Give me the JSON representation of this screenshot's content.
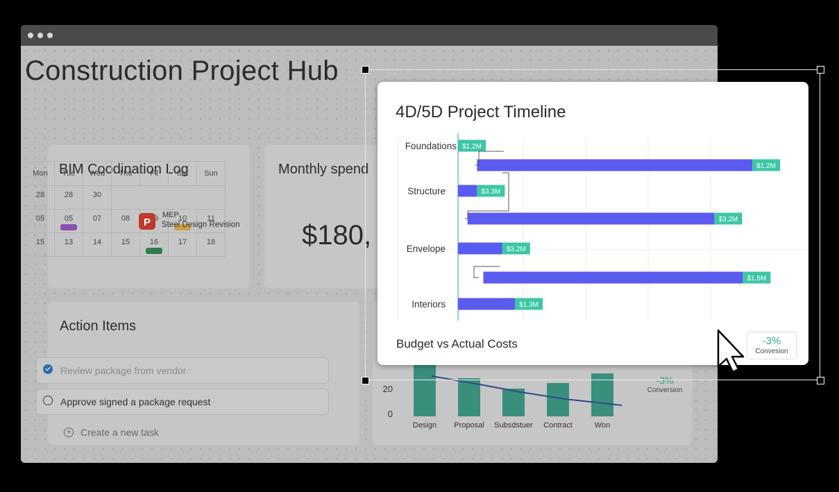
{
  "window": {
    "title": "Construction Project Hub"
  },
  "bim_log": {
    "title": "BIM Coodination Log",
    "weekdays": [
      "Mon",
      "Tue",
      "Wed",
      "Thu",
      "Fil",
      "Sat",
      "Sun"
    ],
    "rows": [
      [
        "28",
        "28",
        "30",
        "",
        "",
        "",
        ""
      ],
      [
        "05",
        "05",
        "07",
        "08",
        "09",
        "10",
        "11"
      ],
      [
        "15",
        "13",
        "14",
        "15",
        "16",
        "17",
        "18"
      ]
    ],
    "event": {
      "category": "MEP",
      "description": "Steel Design Revision",
      "icon": "pin-app-icon",
      "icon_color": "#c0392b"
    },
    "chips": [
      {
        "row": 1,
        "col": 1,
        "color": "#8a4fb0"
      },
      {
        "row": 1,
        "col": 5,
        "color": "#c9a04a"
      },
      {
        "row": 2,
        "col": 4,
        "color": "#2e7d4f"
      }
    ]
  },
  "monthly_spend": {
    "title": "Monthly spend",
    "value": "$180,"
  },
  "action_items": {
    "title": "Action Items",
    "tasks": [
      {
        "label": "Review package from vendor",
        "done": true
      },
      {
        "label": "Approve signed a package request",
        "done": false
      }
    ],
    "create_label": "Create a new task"
  },
  "funnel": {
    "y_ticks": [
      "20",
      "0"
    ],
    "categories": [
      "Design",
      "Proposal",
      "Subsdstuer",
      "Contract",
      "Won"
    ],
    "stat_value": "-3%",
    "stat_label": "Conversion"
  },
  "timeline_card": {
    "title": "4D/5D Project Timeline",
    "subtitle": "Budget vs Actual Costs",
    "stat_value": "-3%",
    "stat_label": "Convesion",
    "bar_color": "#5b5bf0",
    "label_color": "#3cc7a5"
  },
  "chart_data": {
    "type": "bar",
    "orientation": "horizontal",
    "title": "4D/5D Project Timeline",
    "categories": [
      "Foundations",
      "Structure",
      "Envelope",
      "Interiors"
    ],
    "bars": [
      {
        "category": "Foundations",
        "label": "$1.2M",
        "start": 0,
        "end": 0
      },
      {
        "category": "",
        "label": "$1.2M",
        "start": 0.06,
        "end": 0.93
      },
      {
        "category": "Structure",
        "label": "$3.3M",
        "start": 0,
        "end": 0.06
      },
      {
        "category": "",
        "label": "$3.2M",
        "start": 0.03,
        "end": 0.81
      },
      {
        "category": "Envelope",
        "label": "$3.2M",
        "start": 0,
        "end": 0.14
      },
      {
        "category": "",
        "label": "$1.5M",
        "start": 0.08,
        "end": 0.9
      },
      {
        "category": "Interiors",
        "label": "$1.3M",
        "start": 0,
        "end": 0.18
      }
    ],
    "grid": true
  },
  "cursor": {
    "icon": "mouse-pointer-icon"
  }
}
